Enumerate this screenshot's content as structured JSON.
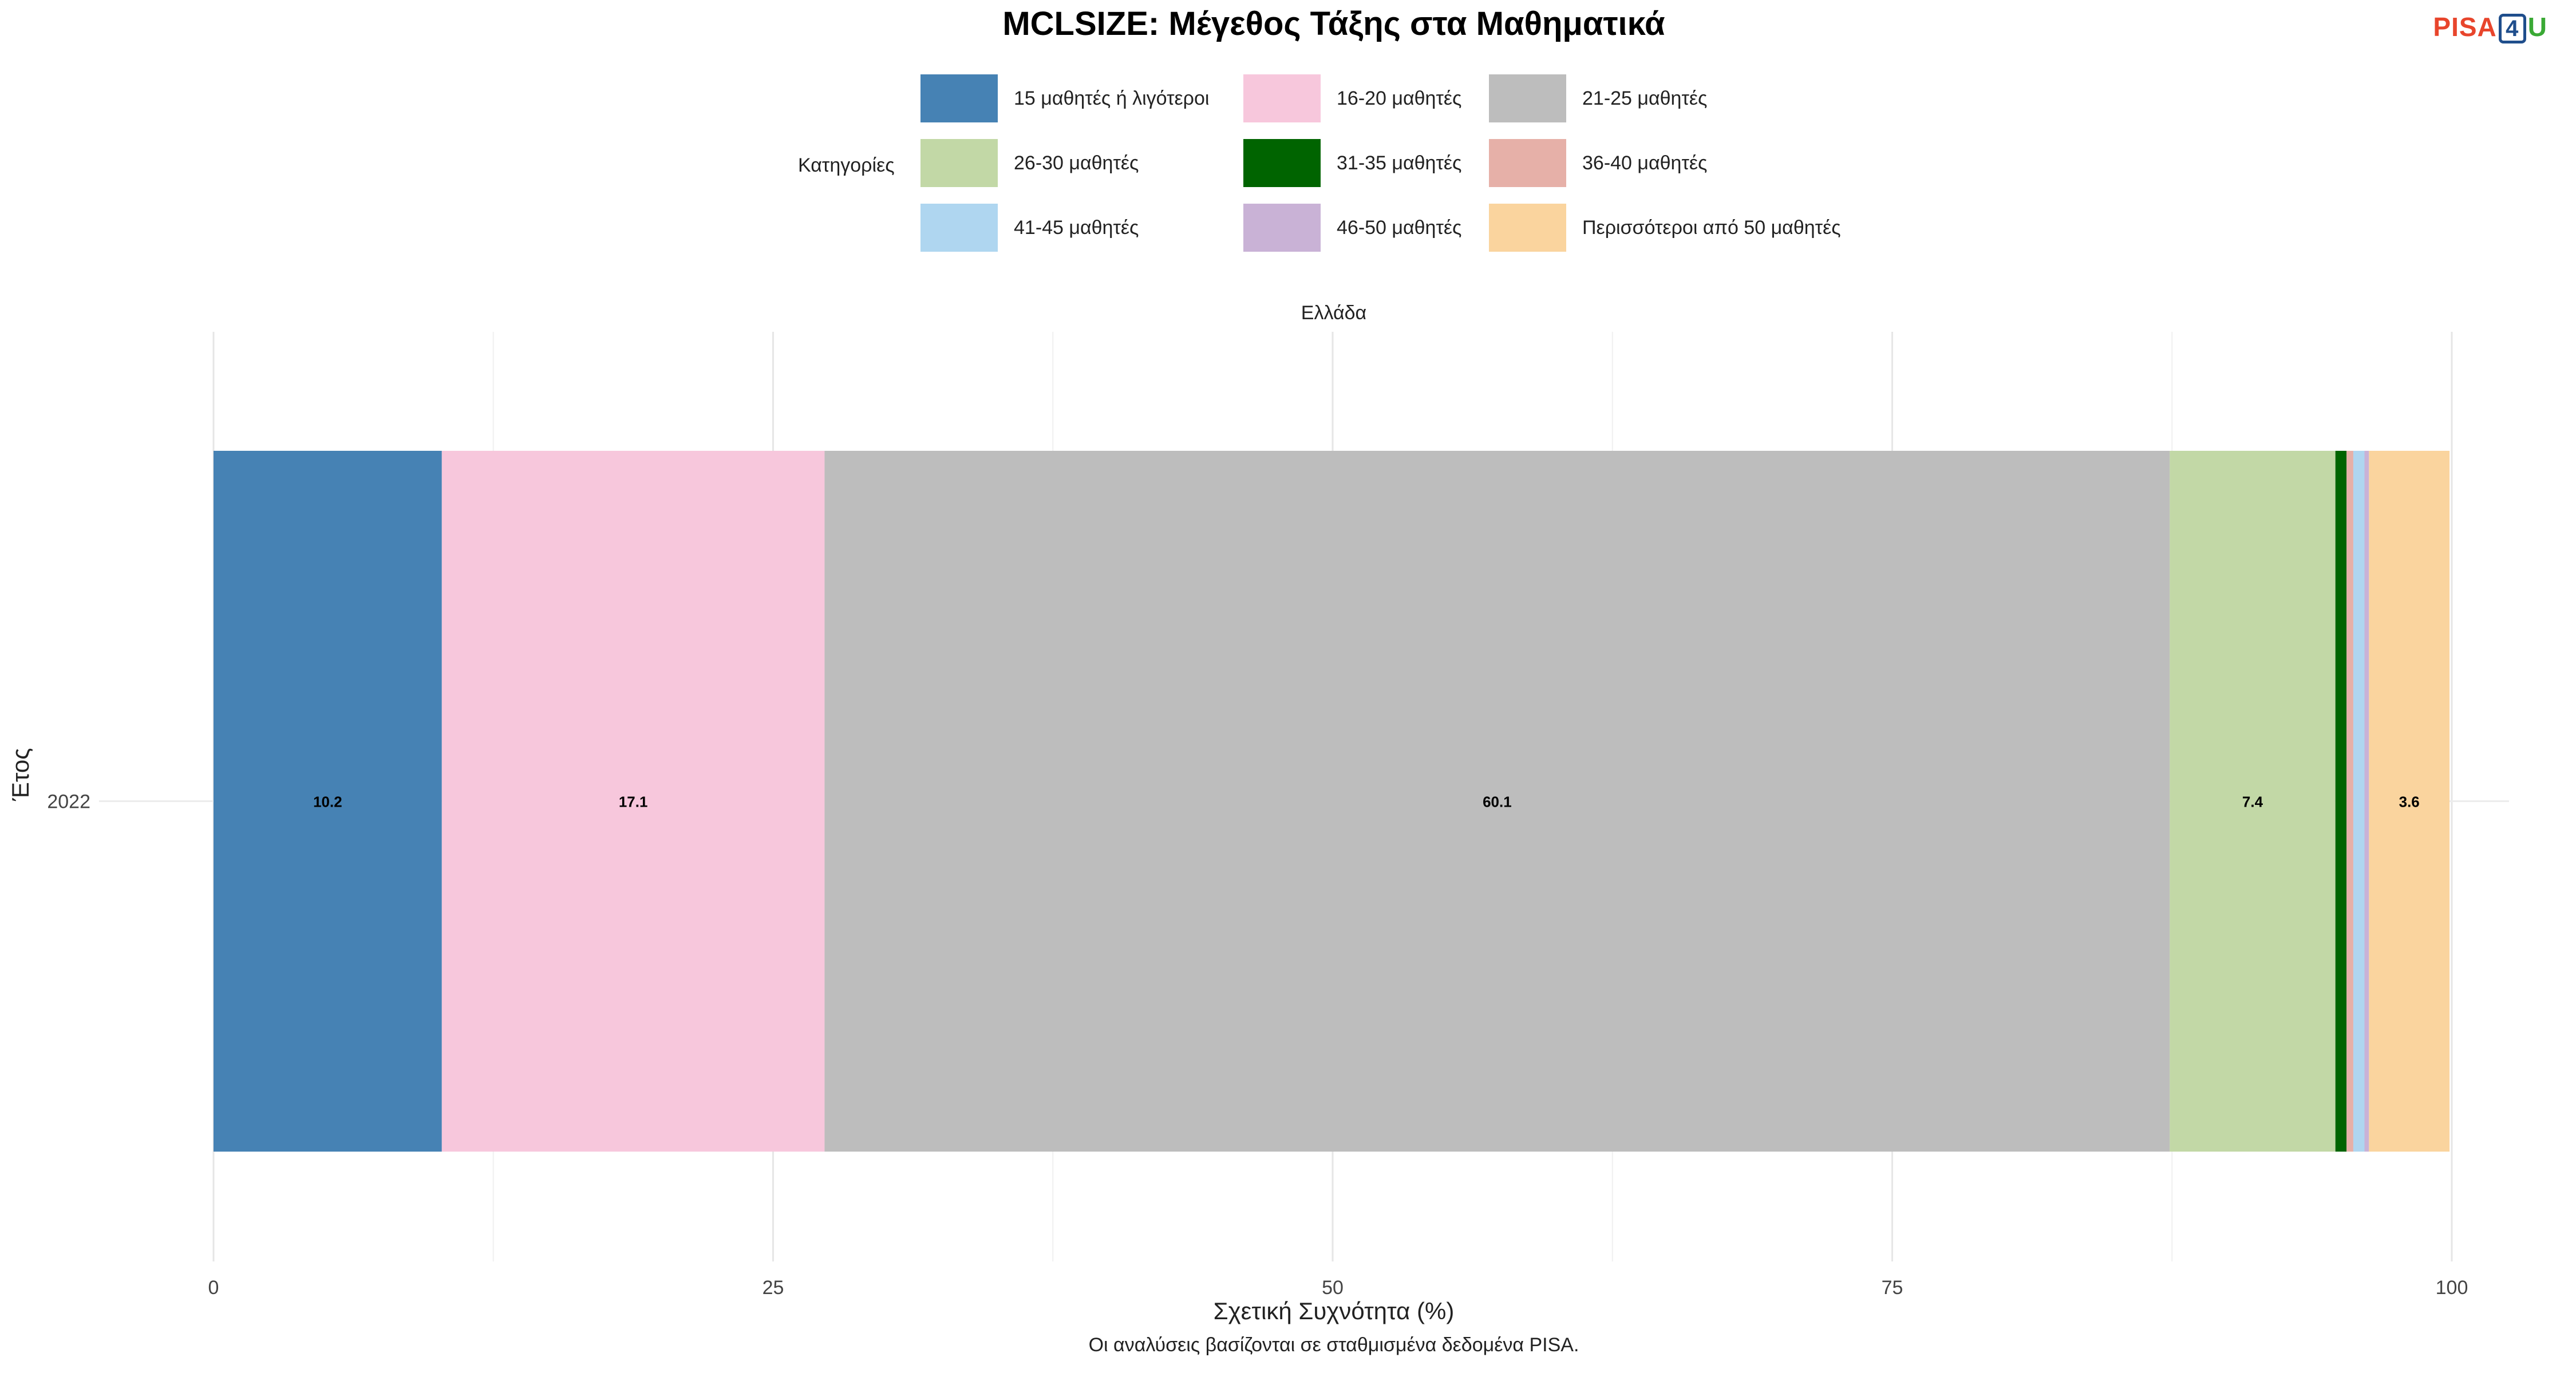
{
  "title": "MCLSIZE: Μέγεθος Τάξης στα Μαθηματικά",
  "logo": {
    "left": "PISA",
    "number": "4",
    "right": "U"
  },
  "legend": {
    "title": "Κατηγορίες"
  },
  "facet": "Ελλάδα",
  "caption": "Οι αναλύσεις βασίζονται σε σταθμισμένα δεδομένα PISA.",
  "chart_data": {
    "type": "bar",
    "orientation": "horizontal",
    "stacked": true,
    "title": "MCLSIZE: Μέγεθος Τάξης στα Μαθηματικά",
    "xlabel": "Σχετική Συχνότητα (%)",
    "ylabel": "Έτος",
    "xlim": [
      0,
      100
    ],
    "xticks": [
      0,
      25,
      50,
      75,
      100
    ],
    "categories": [
      "2022"
    ],
    "grid": true,
    "legend_position": "top",
    "series": [
      {
        "name": "15 μαθητές ή λιγότεροι",
        "color": "#4682b4",
        "values": [
          10.2
        ],
        "label": "10.2"
      },
      {
        "name": "16-20 μαθητές",
        "color": "#f7c7dc",
        "values": [
          17.1
        ],
        "label": "17.1"
      },
      {
        "name": "21-25 μαθητές",
        "color": "#bdbdbd",
        "values": [
          60.1
        ],
        "label": "60.1"
      },
      {
        "name": "26-30 μαθητές",
        "color": "#c2d8a6",
        "values": [
          7.4
        ],
        "label": "7.4"
      },
      {
        "name": "31-35 μαθητές",
        "color": "#006400",
        "values": [
          0.5
        ],
        "label": ""
      },
      {
        "name": "36-40 μαθητές",
        "color": "#e6b0a8",
        "values": [
          0.3
        ],
        "label": ""
      },
      {
        "name": "41-45 μαθητές",
        "color": "#afd6f0",
        "values": [
          0.5
        ],
        "label": ""
      },
      {
        "name": "46-50 μαθητές",
        "color": "#c9b2d6",
        "values": [
          0.2
        ],
        "label": ""
      },
      {
        "name": "Περισσότεροι από 50 μαθητές",
        "color": "#fad49e",
        "values": [
          3.6
        ],
        "label": "3.6"
      }
    ]
  }
}
